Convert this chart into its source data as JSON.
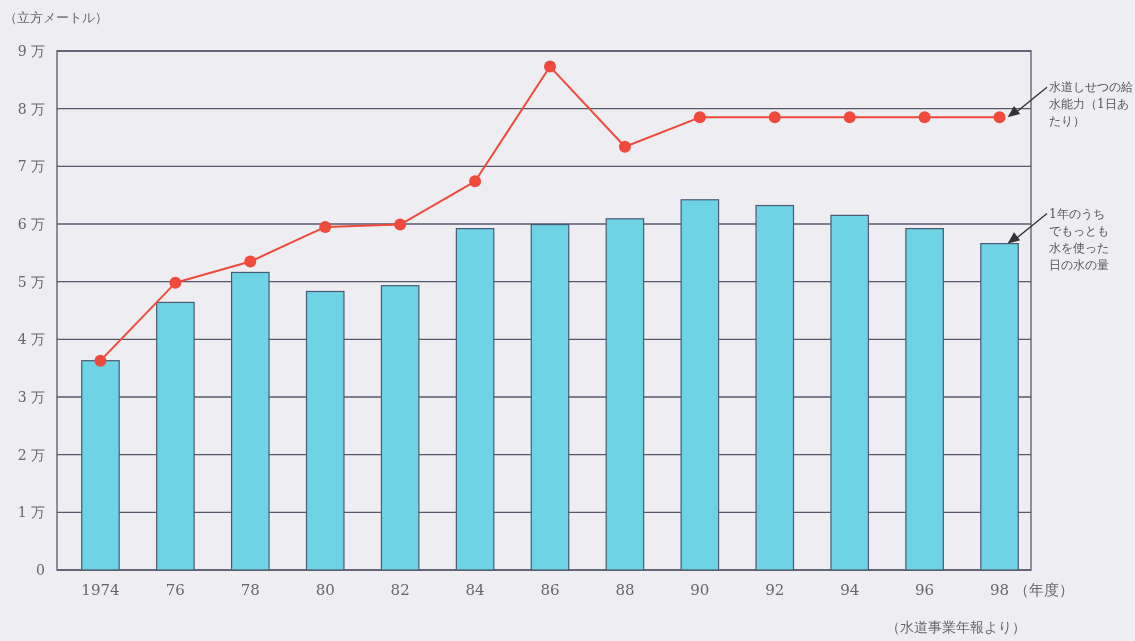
{
  "chart_data": {
    "type": "bar",
    "ylabel": "（立方メートル）",
    "xlabel": "（年度）",
    "categories": [
      "1974",
      "76",
      "78",
      "80",
      "82",
      "84",
      "86",
      "88",
      "90",
      "92",
      "94",
      "96",
      "98"
    ],
    "series": [
      {
        "name": "1年のうちでもっとも水を使った日の水の量",
        "color": "#6fd3e6",
        "values": [
          3.63,
          4.64,
          5.16,
          4.83,
          4.93,
          5.92,
          5.99,
          6.09,
          6.42,
          6.32,
          6.15,
          5.92,
          5.66
        ]
      },
      {
        "name": "水道しせつの給水能力（1日あたり）",
        "type": "line",
        "color": "#f04a3c",
        "marker": "circle",
        "values": [
          3.63,
          4.98,
          5.35,
          5.95,
          5.99,
          6.74,
          8.73,
          7.34,
          7.85,
          7.85,
          7.85,
          7.85,
          7.85
        ]
      }
    ],
    "ylim": [
      0,
      9
    ],
    "yticks": [
      0,
      {
        "value": 1,
        "label": "1 万"
      },
      {
        "value": 2,
        "label": "2 万"
      },
      {
        "value": 3,
        "label": "3 万"
      },
      {
        "value": 4,
        "label": "4 万"
      },
      {
        "value": 5,
        "label": "5 万"
      },
      {
        "value": 6,
        "label": "6 万"
      },
      {
        "value": 7,
        "label": "7 万"
      },
      {
        "value": 8,
        "label": "8 万"
      },
      {
        "value": 9,
        "label": "9 万"
      }
    ],
    "grid": "y",
    "annotations": [
      "（水道事業年報より）"
    ]
  }
}
